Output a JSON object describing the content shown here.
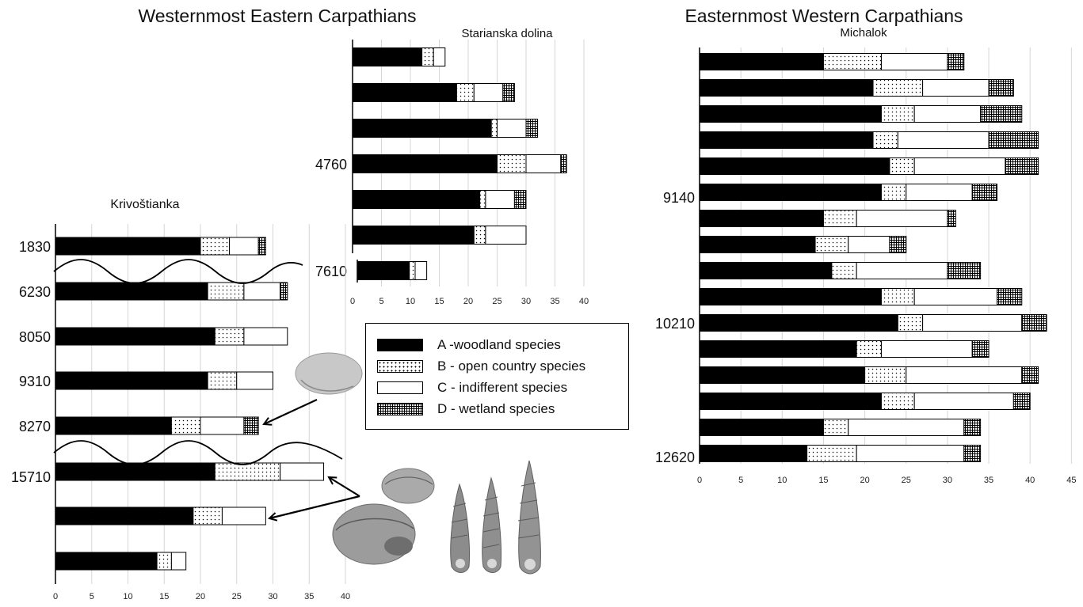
{
  "section_titles": {
    "west": "Westernmost Eastern Carpathians",
    "east": "Easternmost Western Carpathians"
  },
  "legend": {
    "a": "A -woodland species",
    "b": "B - open country species",
    "c": "C - indifferent species",
    "d": "D - wetland species"
  },
  "colors": {
    "woodland": "#000000",
    "open_country": "dotted",
    "indifferent": "#ffffff",
    "wetland": "crosshatch"
  },
  "chart_data": [
    {
      "id": "krivostianka",
      "type": "bar",
      "stacked": true,
      "orientation": "horizontal",
      "title": "Krivoštianka",
      "series_keys": [
        "A",
        "B",
        "C",
        "D"
      ],
      "bars": [
        {
          "label": "1830",
          "values": [
            20,
            4,
            4,
            1
          ]
        },
        {
          "label": "6230",
          "values": [
            21,
            5,
            5,
            1
          ]
        },
        {
          "label": "8050",
          "values": [
            22,
            4,
            6,
            0
          ]
        },
        {
          "label": "9310",
          "values": [
            21,
            4,
            5,
            0
          ]
        },
        {
          "label": "8270",
          "values": [
            16,
            4,
            6,
            2
          ]
        },
        {
          "label": "15710",
          "values": [
            22,
            9,
            6,
            0
          ]
        },
        {
          "label": "",
          "values": [
            19,
            4,
            6,
            0
          ]
        },
        {
          "label": "",
          "values": [
            14,
            2,
            2,
            0
          ]
        }
      ],
      "xlim": [
        0,
        40
      ],
      "xticks": [
        "0",
        "5",
        "10",
        "15",
        "20",
        "25",
        "30",
        "35",
        "40"
      ],
      "grid": true
    },
    {
      "id": "starianska",
      "type": "bar",
      "stacked": true,
      "orientation": "horizontal",
      "title": "Starianska dolina",
      "series_keys": [
        "A",
        "B",
        "C",
        "D"
      ],
      "bars": [
        {
          "label": "",
          "values": [
            12,
            2,
            2,
            0
          ]
        },
        {
          "label": "",
          "values": [
            18,
            3,
            5,
            2
          ]
        },
        {
          "label": "",
          "values": [
            24,
            1,
            5,
            2
          ]
        },
        {
          "label": "4760",
          "values": [
            25,
            5,
            6,
            1
          ]
        },
        {
          "label": "",
          "values": [
            22,
            1,
            5,
            2
          ]
        },
        {
          "label": "",
          "values": [
            21,
            2,
            7,
            0
          ]
        },
        {
          "label": "7610",
          "values": [
            9,
            1,
            2,
            0
          ]
        }
      ],
      "xlim": [
        0,
        40
      ],
      "xticks": [
        "0",
        "5",
        "10",
        "15",
        "20",
        "25",
        "30",
        "35",
        "40"
      ],
      "grid": true
    },
    {
      "id": "michalok",
      "type": "bar",
      "stacked": true,
      "orientation": "horizontal",
      "title": "Michalok",
      "series_keys": [
        "A",
        "B",
        "C",
        "D"
      ],
      "bars": [
        {
          "label": "",
          "values": [
            15,
            7,
            8,
            2
          ]
        },
        {
          "label": "",
          "values": [
            21,
            6,
            8,
            3
          ]
        },
        {
          "label": "",
          "values": [
            22,
            4,
            8,
            5
          ]
        },
        {
          "label": "",
          "values": [
            21,
            3,
            11,
            6
          ]
        },
        {
          "label": "",
          "values": [
            23,
            3,
            11,
            4
          ]
        },
        {
          "label": "9140",
          "values": [
            22,
            3,
            8,
            3
          ]
        },
        {
          "label": "",
          "values": [
            15,
            4,
            11,
            1
          ]
        },
        {
          "label": "",
          "values": [
            14,
            4,
            5,
            2
          ]
        },
        {
          "label": "",
          "values": [
            16,
            3,
            11,
            4
          ]
        },
        {
          "label": "",
          "values": [
            22,
            4,
            10,
            3
          ]
        },
        {
          "label": "10210",
          "values": [
            24,
            3,
            12,
            3
          ]
        },
        {
          "label": "",
          "values": [
            19,
            3,
            11,
            2
          ]
        },
        {
          "label": "",
          "values": [
            20,
            5,
            14,
            2
          ]
        },
        {
          "label": "",
          "values": [
            22,
            4,
            12,
            2
          ]
        },
        {
          "label": "",
          "values": [
            15,
            3,
            14,
            2
          ]
        },
        {
          "label": "12620",
          "values": [
            13,
            6,
            13,
            2
          ]
        }
      ],
      "xlim": [
        0,
        45
      ],
      "xticks": [
        "0",
        "5",
        "10",
        "15",
        "20",
        "25",
        "30",
        "35",
        "40",
        "45"
      ],
      "grid": true
    }
  ]
}
